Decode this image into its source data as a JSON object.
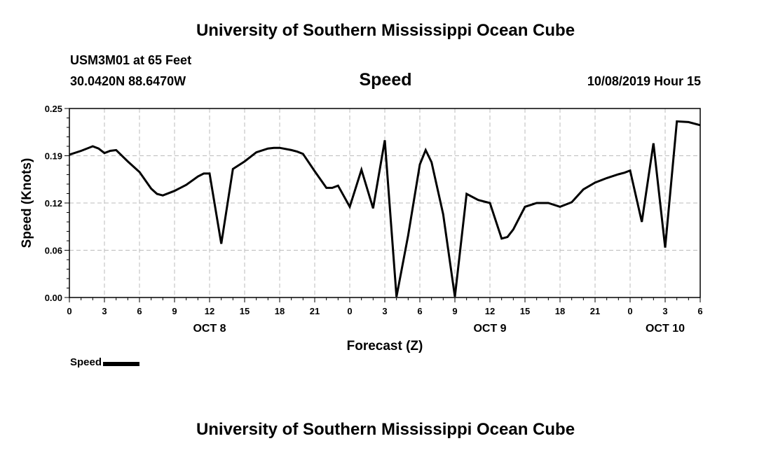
{
  "header": {
    "title": "University of Southern Mississippi Ocean Cube",
    "station": "USM3M01 at 65 Feet",
    "coords": "30.0420N 88.6470W",
    "chart_title": "Speed",
    "datetime": "10/08/2019 Hour 15"
  },
  "footer": {
    "title": "University of Southern Mississippi Ocean Cube"
  },
  "legend": {
    "label": "Speed"
  },
  "colors": {
    "line": "#000000",
    "grid": "#bbbbbb"
  },
  "chart_data": {
    "type": "line",
    "xlabel": "Forecast (Z)",
    "ylabel": "Speed (Knots)",
    "ylim": [
      0,
      0.25
    ],
    "xlim": [
      0,
      54
    ],
    "grid": true,
    "legend_position": "bottom-left",
    "y_ticks": [
      "0.00",
      "0.06",
      "0.12",
      "0.19",
      "0.25"
    ],
    "y_tick_values": [
      0,
      0.0625,
      0.125,
      0.1875,
      0.25
    ],
    "x_ticks": [
      {
        "x": 0,
        "label": "0"
      },
      {
        "x": 3,
        "label": "3"
      },
      {
        "x": 6,
        "label": "6"
      },
      {
        "x": 9,
        "label": "9"
      },
      {
        "x": 12,
        "label": "12"
      },
      {
        "x": 15,
        "label": "15"
      },
      {
        "x": 18,
        "label": "18"
      },
      {
        "x": 21,
        "label": "21"
      },
      {
        "x": 24,
        "label": "0"
      },
      {
        "x": 27,
        "label": "3"
      },
      {
        "x": 30,
        "label": "6"
      },
      {
        "x": 33,
        "label": "9"
      },
      {
        "x": 36,
        "label": "12"
      },
      {
        "x": 39,
        "label": "15"
      },
      {
        "x": 42,
        "label": "18"
      },
      {
        "x": 45,
        "label": "21"
      },
      {
        "x": 48,
        "label": "0"
      },
      {
        "x": 51,
        "label": "3"
      },
      {
        "x": 54,
        "label": "6"
      }
    ],
    "day_labels": [
      {
        "x": 12,
        "label": "OCT 8"
      },
      {
        "x": 36,
        "label": "OCT 9"
      },
      {
        "x": 51,
        "label": "OCT 10"
      }
    ],
    "series": [
      {
        "name": "Speed",
        "x": [
          0,
          1,
          2,
          2.5,
          3,
          3.5,
          4,
          5,
          6,
          7,
          7.5,
          8,
          9,
          10,
          11,
          11.5,
          12,
          13,
          14,
          15,
          16,
          17,
          17.5,
          18,
          19,
          19.5,
          20,
          21,
          22,
          22.5,
          23,
          24,
          25,
          26,
          27,
          28,
          29,
          30,
          30.5,
          31,
          32,
          33,
          34,
          35,
          36,
          37,
          37.5,
          38,
          39,
          40,
          40.5,
          41,
          42,
          43,
          44,
          45,
          46,
          47,
          47.5,
          48,
          49,
          50,
          51,
          52,
          53,
          54
        ],
        "y": [
          0.189,
          0.194,
          0.2,
          0.197,
          0.191,
          0.194,
          0.195,
          0.18,
          0.166,
          0.144,
          0.137,
          0.135,
          0.141,
          0.149,
          0.16,
          0.164,
          0.164,
          0.071,
          0.17,
          0.18,
          0.192,
          0.197,
          0.198,
          0.198,
          0.195,
          0.193,
          0.19,
          0.167,
          0.145,
          0.145,
          0.148,
          0.12,
          0.169,
          0.118,
          0.208,
          0.001,
          0.082,
          0.176,
          0.195,
          0.179,
          0.11,
          0.001,
          0.137,
          0.129,
          0.125,
          0.078,
          0.08,
          0.09,
          0.12,
          0.125,
          0.125,
          0.125,
          0.12,
          0.126,
          0.143,
          0.152,
          0.158,
          0.163,
          0.165,
          0.168,
          0.1,
          0.204,
          0.066,
          0.233,
          0.232,
          0.228
        ]
      }
    ]
  }
}
